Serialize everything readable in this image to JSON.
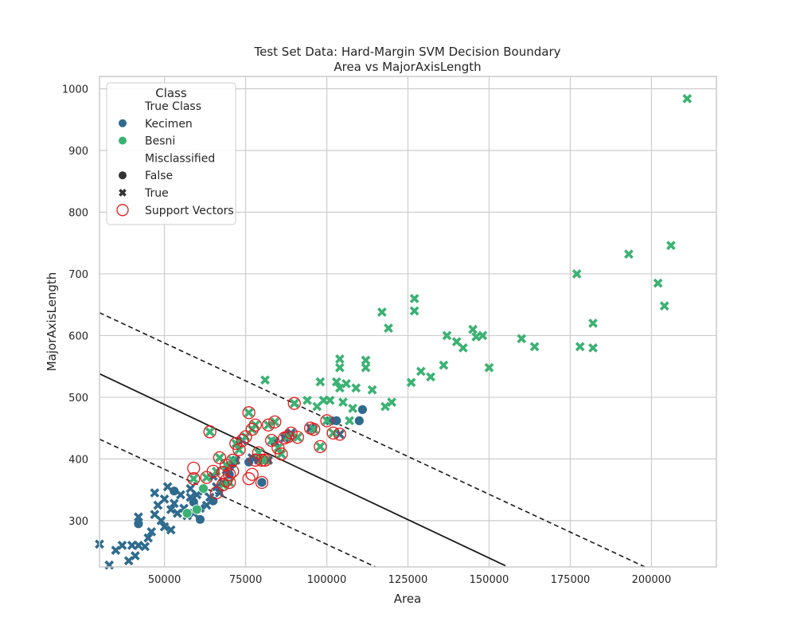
{
  "chart_data": {
    "type": "scatter",
    "title": "Test Set Data: Hard-Margin SVM Decision Boundary",
    "subtitle": "Area vs MajorAxisLength",
    "xlabel": "Area",
    "ylabel": "MajorAxisLength",
    "xlim": [
      30000,
      220000
    ],
    "ylim": [
      225,
      1020
    ],
    "xticks": [
      50000,
      75000,
      100000,
      125000,
      150000,
      175000,
      200000
    ],
    "yticks": [
      300,
      400,
      500,
      600,
      700,
      800,
      900,
      1000
    ],
    "grid": true,
    "legend": {
      "placement": "top-left",
      "title": "Class",
      "entries": [
        {
          "label": "True Class",
          "kind": "header"
        },
        {
          "label": "Kecimen",
          "kind": "color",
          "color": "#2f6b8e"
        },
        {
          "label": "Besni",
          "kind": "color",
          "color": "#3bb273"
        },
        {
          "label": "Misclassified",
          "kind": "header"
        },
        {
          "label": "False",
          "kind": "circle",
          "color": "#333333"
        },
        {
          "label": "True",
          "kind": "cross",
          "color": "#333333"
        },
        {
          "label": "Support Vectors",
          "kind": "ring",
          "color": "#e41a1c"
        }
      ]
    },
    "colors": {
      "Kecimen": "#2f6b8e",
      "Besni": "#3bb273",
      "support": "#e41a1c",
      "boundary": "#1a1a1a"
    },
    "boundary": {
      "decision": [
        [
          30000,
          538
        ],
        [
          155000,
          227
        ]
      ],
      "margin_upper": [
        [
          30000,
          637
        ],
        [
          198000,
          225
        ]
      ],
      "margin_lower": [
        [
          30000,
          432
        ],
        [
          115000,
          225
        ]
      ]
    },
    "series": [
      {
        "name": "Kecimen",
        "misclassified": "False",
        "points": [
          [
            42000,
            295
          ],
          [
            53000,
            348
          ],
          [
            59000,
            330
          ],
          [
            61000,
            302
          ],
          [
            65000,
            332
          ],
          [
            70000,
            375
          ],
          [
            71000,
            392
          ],
          [
            76000,
            395
          ],
          [
            80000,
            362
          ],
          [
            88000,
            440
          ],
          [
            103000,
            462
          ],
          [
            110000,
            462
          ],
          [
            111000,
            480
          ]
        ]
      },
      {
        "name": "Kecimen",
        "misclassified": "True",
        "points": [
          [
            30000,
            262
          ],
          [
            33000,
            228
          ],
          [
            35000,
            252
          ],
          [
            37000,
            260
          ],
          [
            39000,
            235
          ],
          [
            40000,
            260
          ],
          [
            41000,
            243
          ],
          [
            42000,
            260
          ],
          [
            42000,
            306
          ],
          [
            44000,
            258
          ],
          [
            45000,
            272
          ],
          [
            46000,
            282
          ],
          [
            47000,
            310
          ],
          [
            47000,
            345
          ],
          [
            48000,
            325
          ],
          [
            49000,
            300
          ],
          [
            50000,
            290
          ],
          [
            50000,
            335
          ],
          [
            51000,
            355
          ],
          [
            52000,
            285
          ],
          [
            52000,
            318
          ],
          [
            53000,
            328
          ],
          [
            54000,
            312
          ],
          [
            55000,
            342
          ],
          [
            56000,
            320
          ],
          [
            57000,
            308
          ],
          [
            58000,
            338
          ],
          [
            58000,
            352
          ],
          [
            59000,
            312
          ],
          [
            60000,
            342
          ],
          [
            61000,
            320
          ],
          [
            62000,
            348
          ],
          [
            63000,
            325
          ],
          [
            64000,
            338
          ],
          [
            65000,
            372
          ],
          [
            66000,
            355
          ],
          [
            67000,
            345
          ],
          [
            68000,
            362
          ],
          [
            69000,
            382
          ],
          [
            70000,
            388
          ],
          [
            72000,
            398
          ],
          [
            74000,
            430
          ],
          [
            77000,
            402
          ],
          [
            79000,
            398
          ],
          [
            82000,
            398
          ],
          [
            84000,
            428
          ],
          [
            87000,
            434
          ],
          [
            89000,
            442
          ],
          [
            95000,
            450
          ],
          [
            101000,
            462
          ],
          [
            104000,
            440
          ]
        ]
      },
      {
        "name": "Besni",
        "misclassified": "False",
        "points": [
          [
            57000,
            312
          ],
          [
            60000,
            318
          ],
          [
            62000,
            352
          ]
        ]
      },
      {
        "name": "Besni",
        "misclassified": "True",
        "points": [
          [
            59000,
            368
          ],
          [
            63000,
            370
          ],
          [
            64000,
            444
          ],
          [
            66000,
            380
          ],
          [
            67000,
            402
          ],
          [
            68000,
            358
          ],
          [
            69000,
            390
          ],
          [
            70000,
            362
          ],
          [
            71000,
            398
          ],
          [
            72000,
            425
          ],
          [
            73000,
            415
          ],
          [
            75000,
            436
          ],
          [
            76000,
            475
          ],
          [
            77000,
            448
          ],
          [
            78000,
            455
          ],
          [
            79000,
            410
          ],
          [
            80000,
            398
          ],
          [
            81000,
            398
          ],
          [
            82000,
            455
          ],
          [
            83000,
            430
          ],
          [
            84000,
            460
          ],
          [
            85000,
            418
          ],
          [
            86000,
            408
          ],
          [
            88000,
            436
          ],
          [
            90000,
            490
          ],
          [
            91000,
            435
          ],
          [
            94000,
            495
          ],
          [
            96000,
            448
          ],
          [
            97000,
            485
          ],
          [
            98000,
            420
          ],
          [
            98000,
            525
          ],
          [
            99000,
            495
          ],
          [
            100000,
            462
          ],
          [
            101000,
            495
          ],
          [
            102000,
            442
          ],
          [
            103000,
            525
          ],
          [
            104000,
            515
          ],
          [
            104000,
            548
          ],
          [
            104000,
            562
          ],
          [
            105000,
            492
          ],
          [
            106000,
            522
          ],
          [
            107000,
            462
          ],
          [
            108000,
            482
          ],
          [
            109000,
            515
          ],
          [
            112000,
            548
          ],
          [
            112000,
            560
          ],
          [
            114000,
            512
          ],
          [
            117000,
            638
          ],
          [
            118000,
            485
          ],
          [
            119000,
            612
          ],
          [
            120000,
            492
          ],
          [
            126000,
            524
          ],
          [
            127000,
            660
          ],
          [
            127000,
            640
          ],
          [
            129000,
            542
          ],
          [
            132000,
            533
          ],
          [
            136000,
            552
          ],
          [
            137000,
            600
          ],
          [
            140000,
            590
          ],
          [
            142000,
            580
          ],
          [
            145000,
            610
          ],
          [
            146000,
            598
          ],
          [
            148000,
            600
          ],
          [
            150000,
            548
          ],
          [
            160000,
            595
          ],
          [
            164000,
            582
          ],
          [
            177000,
            700
          ],
          [
            178000,
            582
          ],
          [
            182000,
            620
          ],
          [
            182000,
            580
          ],
          [
            193000,
            732
          ],
          [
            202000,
            685
          ],
          [
            204000,
            648
          ],
          [
            206000,
            746
          ],
          [
            211000,
            984
          ],
          [
            81000,
            528
          ]
        ]
      }
    ],
    "support_vectors": [
      [
        59000,
        368
      ],
      [
        59000,
        385
      ],
      [
        63000,
        370
      ],
      [
        64000,
        444
      ],
      [
        65000,
        380
      ],
      [
        66000,
        345
      ],
      [
        67000,
        402
      ],
      [
        68000,
        358
      ],
      [
        68000,
        378
      ],
      [
        69000,
        390
      ],
      [
        69000,
        365
      ],
      [
        70000,
        362
      ],
      [
        70000,
        375
      ],
      [
        71000,
        398
      ],
      [
        71000,
        380
      ],
      [
        72000,
        425
      ],
      [
        73000,
        415
      ],
      [
        74000,
        430
      ],
      [
        75000,
        436
      ],
      [
        76000,
        368
      ],
      [
        76000,
        475
      ],
      [
        77000,
        448
      ],
      [
        77000,
        375
      ],
      [
        78000,
        455
      ],
      [
        78000,
        398
      ],
      [
        79000,
        410
      ],
      [
        80000,
        398
      ],
      [
        80000,
        362
      ],
      [
        81000,
        398
      ],
      [
        82000,
        455
      ],
      [
        83000,
        430
      ],
      [
        84000,
        460
      ],
      [
        85000,
        418
      ],
      [
        86000,
        408
      ],
      [
        87000,
        434
      ],
      [
        88000,
        436
      ],
      [
        89000,
        442
      ],
      [
        90000,
        490
      ],
      [
        91000,
        435
      ],
      [
        95000,
        450
      ],
      [
        96000,
        448
      ],
      [
        98000,
        420
      ],
      [
        100000,
        462
      ],
      [
        102000,
        442
      ],
      [
        104000,
        440
      ]
    ]
  }
}
